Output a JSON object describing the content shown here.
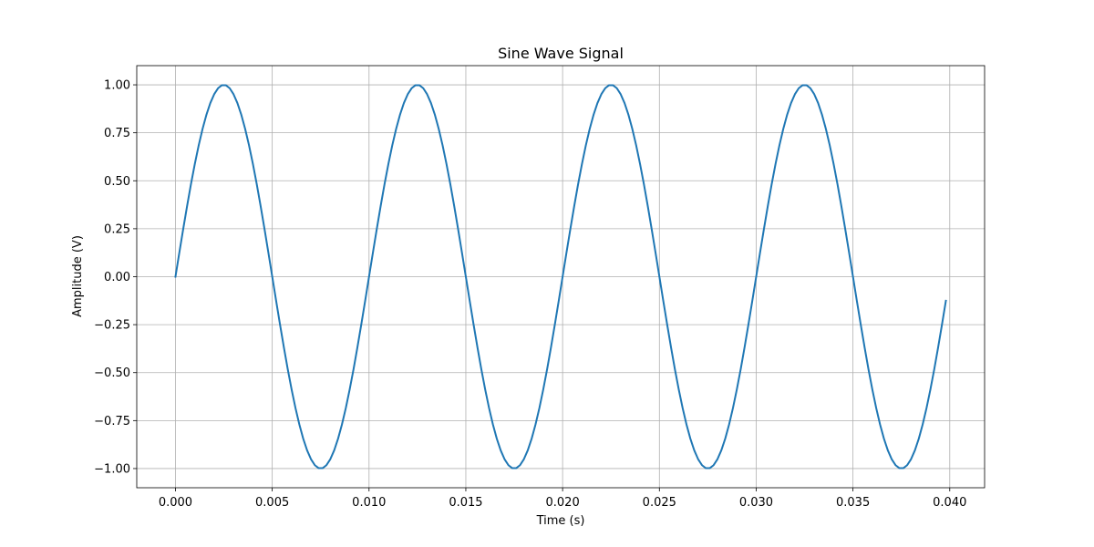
{
  "chart_data": {
    "type": "line",
    "title": "Sine Wave Signal",
    "xlabel": "Time (s)",
    "ylabel": "Amplitude (V)",
    "xlim": [
      -0.002,
      0.0418
    ],
    "ylim": [
      -1.1,
      1.1
    ],
    "grid": true,
    "x_ticks": [
      0.0,
      0.005,
      0.01,
      0.015,
      0.02,
      0.025,
      0.03,
      0.035,
      0.04
    ],
    "x_tick_labels": [
      "0.000",
      "0.005",
      "0.010",
      "0.015",
      "0.020",
      "0.025",
      "0.030",
      "0.035",
      "0.040"
    ],
    "y_ticks": [
      1.0,
      0.75,
      0.5,
      0.25,
      0.0,
      -0.25,
      -0.5,
      -0.75,
      -1.0
    ],
    "y_tick_labels": [
      "1.00",
      "0.75",
      "0.50",
      "0.25",
      "0.00",
      "−0.25",
      "−0.50",
      "−0.75",
      "−1.00"
    ],
    "series": [
      {
        "color": "#1f77b4",
        "frequency_hz": 100,
        "amplitude_v": 1.0,
        "x_start": 0.0,
        "x_end": 0.0398,
        "x_step": 0.0002
      }
    ]
  }
}
